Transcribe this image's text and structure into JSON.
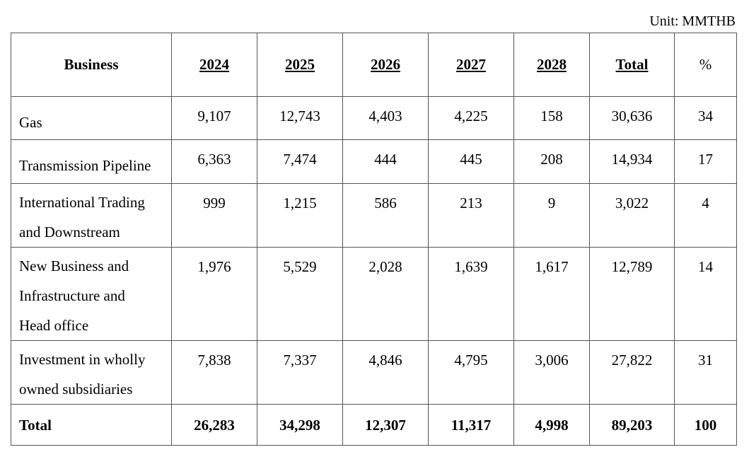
{
  "unit_label": "Unit: MMTHB",
  "headers": {
    "business": "Business",
    "y2024": "2024",
    "y2025": "2025",
    "y2026": "2026",
    "y2027": "2027",
    "y2028": "2028",
    "total": "Total",
    "pct": "%"
  },
  "rows": [
    {
      "name_lines": [
        "Gas"
      ],
      "v2024": "9,107",
      "v2025": "12,743",
      "v2026": "4,403",
      "v2027": "4,225",
      "v2028": "158",
      "total": "30,636",
      "pct": "34"
    },
    {
      "name_lines": [
        "Transmission Pipeline"
      ],
      "v2024": "6,363",
      "v2025": "7,474",
      "v2026": "444",
      "v2027": "445",
      "v2028": "208",
      "total": "14,934",
      "pct": "17"
    },
    {
      "name_lines": [
        "International Trading",
        "and Downstream"
      ],
      "v2024": "999",
      "v2025": "1,215",
      "v2026": "586",
      "v2027": "213",
      "v2028": "9",
      "total": "3,022",
      "pct": "4"
    },
    {
      "name_lines": [
        "New Business and",
        "Infrastructure and",
        "Head office"
      ],
      "v2024": "1,976",
      "v2025": "5,529",
      "v2026": "2,028",
      "v2027": "1,639",
      "v2028": "1,617",
      "total": "12,789",
      "pct": "14"
    },
    {
      "name_lines": [
        "Investment in wholly",
        "owned subsidiaries"
      ],
      "v2024": "7,838",
      "v2025": "7,337",
      "v2026": "4,846",
      "v2027": "4,795",
      "v2028": "3,006",
      "total": "27,822",
      "pct": "31"
    }
  ],
  "total_row": {
    "name": "Total",
    "v2024": "26,283",
    "v2025": "34,298",
    "v2026": "12,307",
    "v2027": "11,317",
    "v2028": "4,998",
    "total": "89,203",
    "pct": "100"
  }
}
